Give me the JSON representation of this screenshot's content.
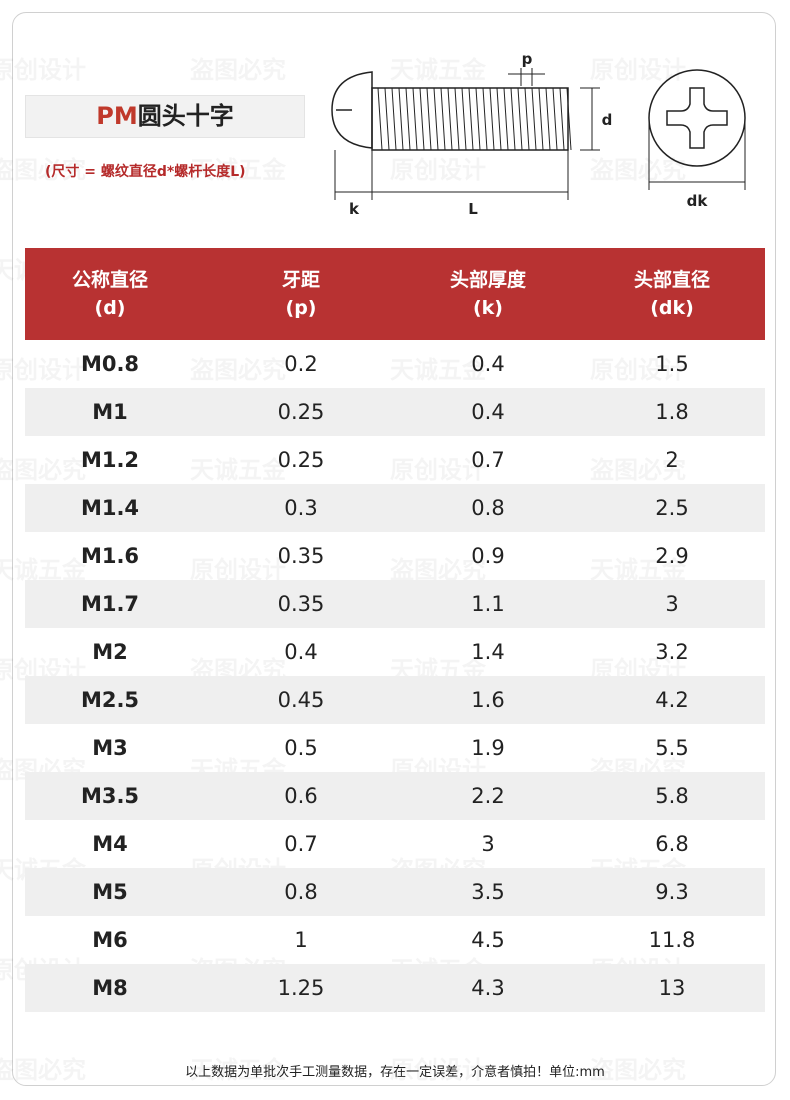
{
  "header": {
    "title_prefix": "PM",
    "title": "圆头十字",
    "subtitle": "(尺寸 = 螺纹直径d*螺杆长度L)"
  },
  "diagram": {
    "labels": {
      "p": "p",
      "d": "d",
      "k": "k",
      "L": "L",
      "dk": "dk"
    }
  },
  "watermarks": [
    "原创设计",
    "盗图必究",
    "天诚五金"
  ],
  "table": {
    "header": [
      [
        "公称直径",
        "(d)"
      ],
      [
        "牙距",
        "(p)"
      ],
      [
        "头部厚度",
        "(k)"
      ],
      [
        "头部直径",
        "(dk)"
      ]
    ],
    "rows": [
      [
        "M0.8",
        "0.2",
        "0.4",
        "1.5"
      ],
      [
        "M1",
        "0.25",
        "0.4",
        "1.8"
      ],
      [
        "M1.2",
        "0.25",
        "0.7",
        "2"
      ],
      [
        "M1.4",
        "0.3",
        "0.8",
        "2.5"
      ],
      [
        "M1.6",
        "0.35",
        "0.9",
        "2.9"
      ],
      [
        "M1.7",
        "0.35",
        "1.1",
        "3"
      ],
      [
        "M2",
        "0.4",
        "1.4",
        "3.2"
      ],
      [
        "M2.5",
        "0.45",
        "1.6",
        "4.2"
      ],
      [
        "M3",
        "0.5",
        "1.9",
        "5.5"
      ],
      [
        "M3.5",
        "0.6",
        "2.2",
        "5.8"
      ],
      [
        "M4",
        "0.7",
        "3",
        "6.8"
      ],
      [
        "M5",
        "0.8",
        "3.5",
        "9.3"
      ],
      [
        "M6",
        "1",
        "4.5",
        "11.8"
      ],
      [
        "M8",
        "1.25",
        "4.3",
        "13"
      ]
    ]
  },
  "footer": "以上数据为单批次手工测量数据，存在一定误差，介意者慎拍！单位:mm"
}
